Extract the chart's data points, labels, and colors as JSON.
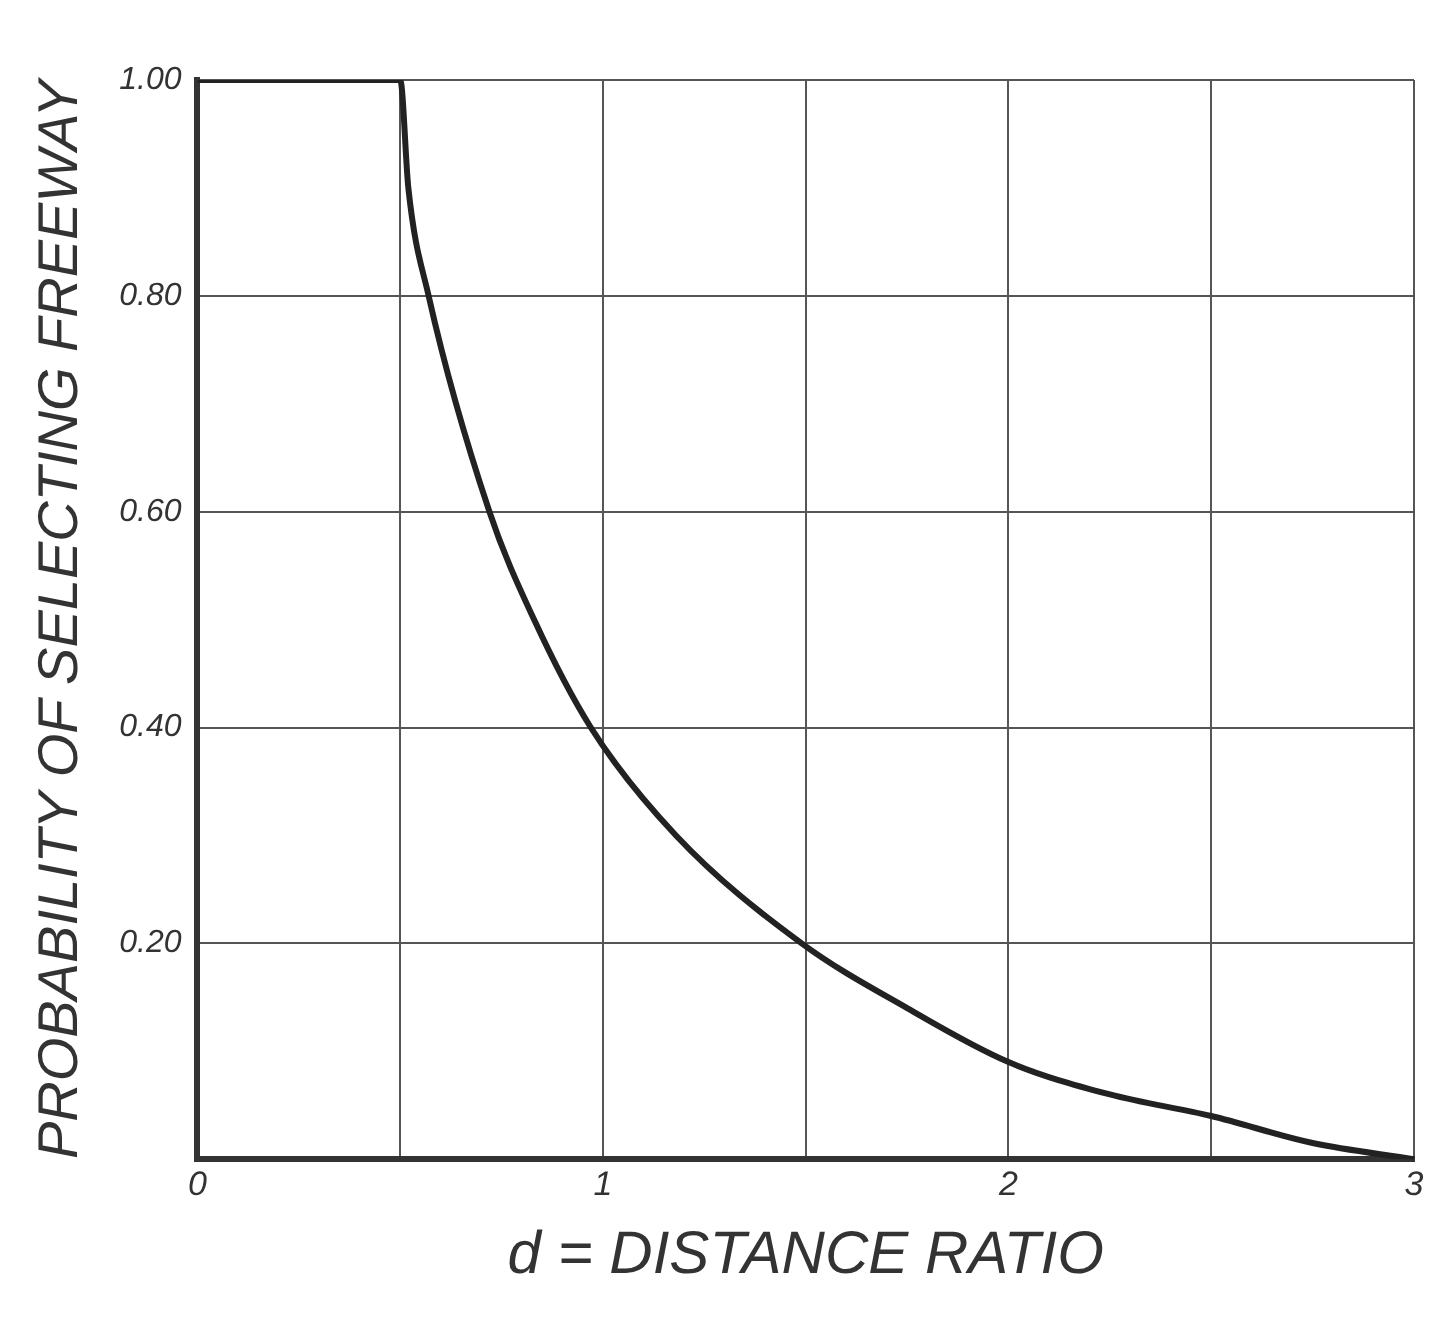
{
  "chart_data": {
    "type": "line",
    "xlabel": "d = DISTANCE RATIO",
    "ylabel": "PROBABILITY OF SELECTING FREEWAY",
    "x": [
      0,
      0.5,
      0.52,
      0.57,
      0.72,
      0.83,
      0.97,
      1.18,
      1.49,
      1.75,
      2,
      2.25,
      2.5,
      2.75,
      3
    ],
    "series": [
      {
        "color": "#222222",
        "values": [
          1,
          1,
          0.9,
          0.8,
          0.6,
          0.5,
          0.4,
          0.3,
          0.2,
          0.14,
          0.09,
          0.06,
          0.04,
          0.015,
          0
        ]
      }
    ],
    "xlim": [
      0,
      3
    ],
    "xticks": [
      0,
      {
        "value": 0.5,
        "label": null
      },
      1,
      {
        "value": 1.5,
        "label": null
      },
      2,
      {
        "value": 2.5,
        "label": null
      },
      3
    ],
    "ylim": [
      0,
      1
    ],
    "yticks": [
      {
        "value": 0,
        "label": null
      },
      {
        "value": 0.2,
        "label": "0.20"
      },
      {
        "value": 0.4,
        "label": "0.40"
      },
      {
        "value": 0.6,
        "label": "0.60"
      },
      {
        "value": 0.8,
        "label": "0.80"
      },
      {
        "value": 1,
        "label": "1.00"
      }
    ],
    "grid": true,
    "legend": false,
    "marker": "none",
    "line_style": "solid"
  }
}
